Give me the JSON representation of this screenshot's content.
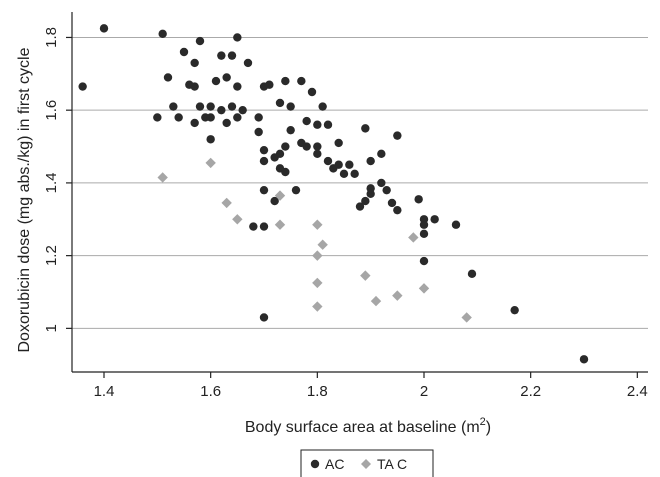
{
  "chart_data": {
    "type": "scatter",
    "xlabel_main": "Body surface area at baseline (m",
    "xlabel_sup": "2",
    "xlabel_end": ")",
    "ylabel": "Doxorubicin dose (mg abs./kg) in first cycle",
    "xlim": [
      1.34,
      2.42
    ],
    "ylim": [
      0.88,
      1.87
    ],
    "xticks": [
      "1.4",
      "1.6",
      "1.8",
      "2",
      "2.2",
      "2.4"
    ],
    "yticks": [
      "1",
      "1.2",
      "1.4",
      "1.6",
      "1.8"
    ],
    "grid": "horizontal",
    "legend_position": "bottom-center",
    "colors": {
      "AC": "#2a2a2a",
      "TAC": "#a6a6a6",
      "grid": "#aaaaaa",
      "axis": "#222222"
    },
    "series": [
      {
        "name": "AC",
        "marker": "circle",
        "points": [
          [
            1.36,
            1.665
          ],
          [
            1.4,
            1.825
          ],
          [
            1.5,
            1.58
          ],
          [
            1.51,
            1.81
          ],
          [
            1.52,
            1.69
          ],
          [
            1.53,
            1.61
          ],
          [
            1.54,
            1.58
          ],
          [
            1.55,
            1.76
          ],
          [
            1.56,
            1.67
          ],
          [
            1.57,
            1.73
          ],
          [
            1.57,
            1.665
          ],
          [
            1.57,
            1.565
          ],
          [
            1.58,
            1.79
          ],
          [
            1.58,
            1.61
          ],
          [
            1.59,
            1.58
          ],
          [
            1.6,
            1.61
          ],
          [
            1.6,
            1.58
          ],
          [
            1.6,
            1.52
          ],
          [
            1.61,
            1.68
          ],
          [
            1.62,
            1.75
          ],
          [
            1.62,
            1.6
          ],
          [
            1.63,
            1.69
          ],
          [
            1.63,
            1.565
          ],
          [
            1.64,
            1.75
          ],
          [
            1.64,
            1.61
          ],
          [
            1.65,
            1.8
          ],
          [
            1.65,
            1.665
          ],
          [
            1.65,
            1.58
          ],
          [
            1.66,
            1.6
          ],
          [
            1.67,
            1.73
          ],
          [
            1.68,
            1.28
          ],
          [
            1.69,
            1.58
          ],
          [
            1.69,
            1.54
          ],
          [
            1.7,
            1.665
          ],
          [
            1.7,
            1.49
          ],
          [
            1.7,
            1.46
          ],
          [
            1.7,
            1.38
          ],
          [
            1.7,
            1.28
          ],
          [
            1.7,
            1.03
          ],
          [
            1.71,
            1.67
          ],
          [
            1.72,
            1.47
          ],
          [
            1.72,
            1.35
          ],
          [
            1.73,
            1.48
          ],
          [
            1.73,
            1.44
          ],
          [
            1.73,
            1.62
          ],
          [
            1.74,
            1.68
          ],
          [
            1.74,
            1.5
          ],
          [
            1.74,
            1.43
          ],
          [
            1.75,
            1.545
          ],
          [
            1.75,
            1.61
          ],
          [
            1.76,
            1.38
          ],
          [
            1.77,
            1.68
          ],
          [
            1.77,
            1.51
          ],
          [
            1.78,
            1.57
          ],
          [
            1.78,
            1.5
          ],
          [
            1.79,
            1.65
          ],
          [
            1.8,
            1.56
          ],
          [
            1.8,
            1.5
          ],
          [
            1.8,
            1.48
          ],
          [
            1.81,
            1.61
          ],
          [
            1.82,
            1.56
          ],
          [
            1.82,
            1.46
          ],
          [
            1.83,
            1.44
          ],
          [
            1.84,
            1.51
          ],
          [
            1.84,
            1.45
          ],
          [
            1.85,
            1.425
          ],
          [
            1.86,
            1.45
          ],
          [
            1.87,
            1.425
          ],
          [
            1.88,
            1.335
          ],
          [
            1.89,
            1.55
          ],
          [
            1.89,
            1.35
          ],
          [
            1.9,
            1.46
          ],
          [
            1.9,
            1.37
          ],
          [
            1.9,
            1.385
          ],
          [
            1.92,
            1.48
          ],
          [
            1.92,
            1.4
          ],
          [
            1.93,
            1.38
          ],
          [
            1.94,
            1.345
          ],
          [
            1.95,
            1.53
          ],
          [
            1.95,
            1.325
          ],
          [
            1.99,
            1.355
          ],
          [
            2.0,
            1.3
          ],
          [
            2.0,
            1.285
          ],
          [
            2.0,
            1.26
          ],
          [
            2.0,
            1.185
          ],
          [
            2.02,
            1.3
          ],
          [
            2.06,
            1.285
          ],
          [
            2.09,
            1.15
          ],
          [
            2.17,
            1.05
          ],
          [
            2.3,
            0.915
          ]
        ]
      },
      {
        "name": "TA C",
        "marker": "diamond",
        "points": [
          [
            1.51,
            1.415
          ],
          [
            1.6,
            1.455
          ],
          [
            1.63,
            1.345
          ],
          [
            1.65,
            1.3
          ],
          [
            1.73,
            1.365
          ],
          [
            1.73,
            1.285
          ],
          [
            1.8,
            1.285
          ],
          [
            1.8,
            1.2
          ],
          [
            1.8,
            1.125
          ],
          [
            1.8,
            1.06
          ],
          [
            1.81,
            1.23
          ],
          [
            1.89,
            1.145
          ],
          [
            1.91,
            1.075
          ],
          [
            1.95,
            1.09
          ],
          [
            1.98,
            1.25
          ],
          [
            2.0,
            1.11
          ],
          [
            2.08,
            1.03
          ]
        ]
      }
    ],
    "legend": [
      "AC",
      "TA C"
    ]
  }
}
